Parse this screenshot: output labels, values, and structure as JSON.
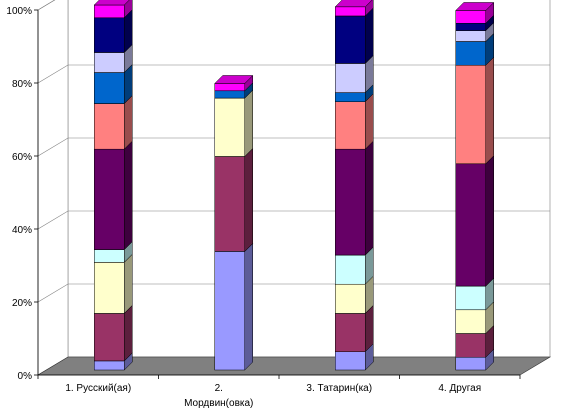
{
  "chart_data": {
    "type": "bar",
    "stacked": true,
    "three_d": true,
    "title": "",
    "xlabel": "",
    "ylabel": "",
    "ylim": [
      0,
      100
    ],
    "y_ticks": [
      "0%",
      "20%",
      "40%",
      "60%",
      "80%",
      "100%"
    ],
    "categories": [
      [
        "1. Русский(ая)"
      ],
      [
        "2.",
        "Мордвин(овка)"
      ],
      [
        "3. Татарин(ка)"
      ],
      [
        "4. Другая"
      ]
    ],
    "series": [
      {
        "color": "#9999ff",
        "values": [
          2.5,
          32.5,
          5,
          3.5
        ]
      },
      {
        "color": "#993366",
        "values": [
          13,
          26,
          10.5,
          6.5
        ]
      },
      {
        "color": "#ffffcc",
        "values": [
          14,
          16,
          8,
          6.5
        ]
      },
      {
        "color": "#ccffff",
        "values": [
          3.5,
          0,
          8,
          6.5
        ]
      },
      {
        "color": "#660066",
        "values": [
          27.5,
          0,
          29,
          33.5
        ]
      },
      {
        "color": "#ff8080",
        "values": [
          0,
          0,
          0,
          0
        ]
      },
      {
        "color": "#ff8080",
        "values": [
          12.5,
          0,
          13,
          27
        ]
      },
      {
        "color": "#0066cc",
        "values": [
          8.5,
          2,
          2.5,
          6.5
        ]
      },
      {
        "color": "#ccccff",
        "values": [
          5.5,
          0,
          8,
          3
        ]
      },
      {
        "color": "#000080",
        "values": [
          9.5,
          0,
          13,
          2
        ]
      },
      {
        "color": "#ff00ff",
        "values": [
          3.5,
          2,
          2.5,
          3.5
        ]
      }
    ],
    "grid": true,
    "legend": "none"
  }
}
